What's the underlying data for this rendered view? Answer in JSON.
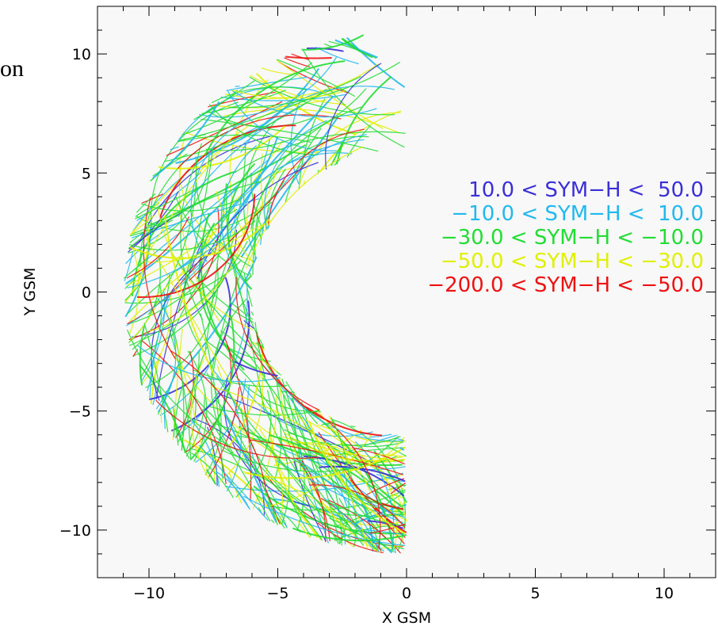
{
  "page_fragment": "on",
  "chart_data": {
    "type": "scatter",
    "title": "",
    "xlabel": "X GSM",
    "ylabel": "Y GSM",
    "xlim": [
      -12,
      12
    ],
    "ylim": [
      -12,
      12
    ],
    "x_ticks": [
      -10,
      -5,
      0,
      5,
      10
    ],
    "y_ticks": [
      -10,
      -5,
      0,
      5,
      10
    ],
    "x_tick_labels": [
      "−10",
      "−5",
      "0",
      "5",
      "10"
    ],
    "y_tick_labels": [
      "−10",
      "−5",
      "0",
      "5",
      "10"
    ],
    "grid": false,
    "legend_position": "center-right",
    "background": "#f8f8f8",
    "coverage_region": {
      "r_inner": 6,
      "r_outer": 11,
      "x_max": 0
    },
    "series": [
      {
        "name": "10.0 < SYM−H < 50.0",
        "color": "#3a2fd8",
        "legend_text": "10.0 < SYM−H <  50.0"
      },
      {
        "name": "−10.0 < SYM−H < 10.0",
        "color": "#22b8ee",
        "legend_text": "−10.0 < SYM−H <  10.0"
      },
      {
        "name": "−30.0 < SYM−H < −10.0",
        "color": "#22dd33",
        "legend_text": "−30.0 < SYM−H < −10.0"
      },
      {
        "name": "−50.0 < SYM−H < −30.0",
        "color": "#e0f000",
        "legend_text": "−50.0 < SYM−H < −30.0"
      },
      {
        "name": "−200.0 < SYM−H < −50.0",
        "color": "#ee1111",
        "legend_text": "−200.0 < SYM−H < −50.0"
      }
    ]
  }
}
